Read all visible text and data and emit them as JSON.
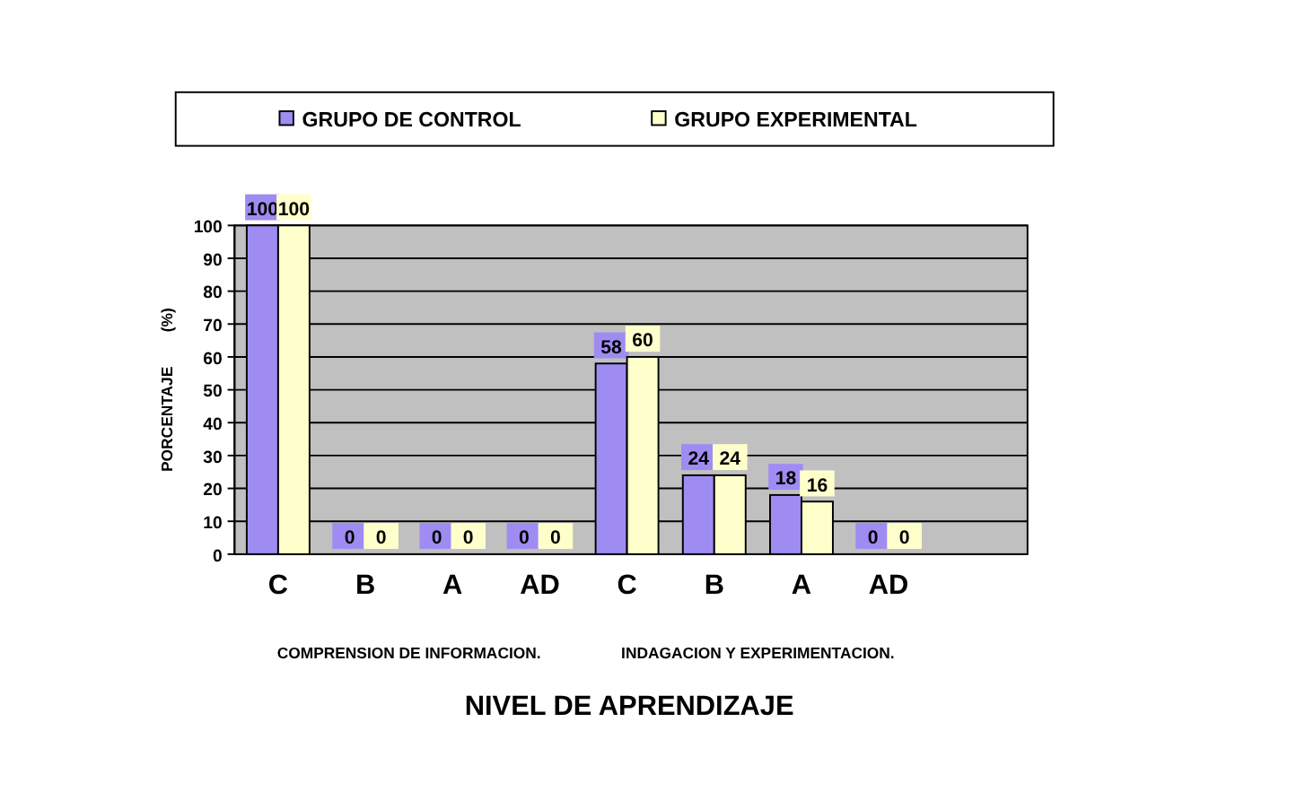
{
  "chart_data": {
    "type": "bar",
    "xlabel": "NIVEL DE APRENDIZAJE",
    "ylabel": "PORCENTAJE        (%)",
    "categories": [
      "C",
      "B",
      "A",
      "AD",
      "C",
      "B",
      "A",
      "AD"
    ],
    "series": [
      {
        "name": "GRUPO DE CONTROL",
        "color": "#9f8cf2",
        "values": [
          100,
          0,
          0,
          0,
          58,
          24,
          18,
          0
        ]
      },
      {
        "name": "GRUPO EXPERIMENTAL",
        "color": "#ffffcc",
        "values": [
          100,
          0,
          0,
          0,
          60,
          24,
          16,
          0
        ]
      }
    ],
    "ylim": [
      0,
      100
    ],
    "yticks": [
      0,
      10,
      20,
      30,
      40,
      50,
      60,
      70,
      80,
      90,
      100
    ],
    "grid": "y",
    "legend": "top",
    "data_labels": true,
    "annotations": [
      "COMPRENSION DE INFORMACION.",
      "INDAGACION  Y EXPERIMENTACION."
    ]
  }
}
